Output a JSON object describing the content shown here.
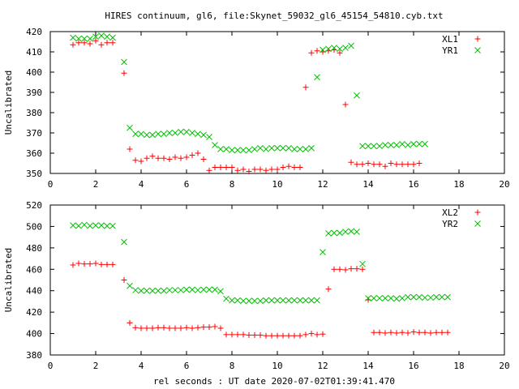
{
  "figure": {
    "title": "HIRES continuum, gl6, file:Skynet_59032_gl6_45154_54810.cyb.txt",
    "xlabel": "rel seconds : UT date 2020-07-02T01:39:41.470"
  },
  "colors": {
    "series_1": "#ff0000",
    "series_2": "#00c000",
    "axes": "#000000"
  },
  "chart_data": [
    {
      "type": "scatter",
      "ylabel": "Uncalibrated",
      "xlim": [
        0,
        20
      ],
      "ylim": [
        350,
        420
      ],
      "xticks": [
        0,
        2,
        4,
        6,
        8,
        10,
        12,
        14,
        16,
        18,
        20
      ],
      "yticks": [
        350,
        360,
        370,
        380,
        390,
        400,
        410,
        420
      ],
      "legend_position": "top-right",
      "x": [
        1.0,
        1.25,
        1.5,
        1.75,
        2.0,
        2.25,
        2.5,
        2.75,
        3.0,
        3.25,
        3.5,
        3.75,
        4.0,
        4.25,
        4.5,
        4.75,
        5.0,
        5.25,
        5.5,
        5.75,
        6.0,
        6.25,
        6.5,
        6.75,
        7.0,
        7.25,
        7.5,
        7.75,
        8.0,
        8.25,
        8.5,
        8.75,
        9.0,
        9.25,
        9.5,
        9.75,
        10.0,
        10.25,
        10.5,
        10.75,
        11.0,
        11.25,
        11.5,
        11.75,
        12.0,
        12.25,
        12.5,
        12.75,
        13.0,
        13.25,
        13.5,
        13.75,
        14.0,
        14.25,
        14.5,
        14.75,
        15.0,
        15.25,
        15.5,
        15.75,
        16.0,
        16.25,
        16.5,
        16.75,
        17.0,
        17.25,
        17.5,
        17.75,
        18.0,
        18.25,
        18.5,
        18.75,
        19.0
      ],
      "series": [
        {
          "name": "XL1",
          "marker": "plus",
          "color": "#ff0000",
          "values": [
            413.5,
            414.5,
            414.5,
            414.0,
            415.5,
            413.5,
            414.5,
            414.5,
            null,
            399.5,
            362.0,
            356.5,
            356.0,
            357.5,
            358.5,
            357.5,
            357.5,
            357.0,
            358.0,
            357.5,
            358.0,
            359.0,
            360.0,
            357.0,
            351.5,
            353.0,
            353.0,
            353.0,
            353.0,
            351.5,
            352.0,
            351.0,
            352.0,
            352.0,
            351.5,
            352.0,
            352.0,
            353.0,
            353.5,
            353.0,
            353.0,
            392.5,
            409.5,
            410.5,
            410.0,
            410.5,
            411.0,
            409.5,
            384.0,
            355.5,
            354.5,
            354.5,
            355.0,
            354.5,
            354.5,
            353.5,
            355.0,
            354.5,
            354.5,
            354.5,
            354.5,
            355.0,
            null,
            null,
            null,
            null,
            null,
            null,
            null,
            null,
            null,
            null,
            null
          ]
        },
        {
          "name": "YR1",
          "marker": "cross",
          "color": "#00c000",
          "values": [
            417.0,
            416.5,
            416.5,
            416.5,
            417.5,
            418.0,
            417.5,
            417.0,
            null,
            405.0,
            372.5,
            369.5,
            369.5,
            369.0,
            369.0,
            369.5,
            369.5,
            370.0,
            370.0,
            370.5,
            370.5,
            370.0,
            369.5,
            369.0,
            368.0,
            364.0,
            362.0,
            362.0,
            361.5,
            361.5,
            361.5,
            361.5,
            362.0,
            362.5,
            362.0,
            362.5,
            362.5,
            362.5,
            362.5,
            362.0,
            362.0,
            362.0,
            362.5,
            397.5,
            411.0,
            411.5,
            412.0,
            411.5,
            412.0,
            413.0,
            388.5,
            363.5,
            363.5,
            363.5,
            363.5,
            364.0,
            364.0,
            364.0,
            364.5,
            364.0,
            364.5,
            364.5,
            364.5,
            null,
            null,
            null,
            null,
            null,
            null,
            null,
            null,
            null,
            null
          ]
        }
      ]
    },
    {
      "type": "scatter",
      "ylabel": "Uncalibrated",
      "xlim": [
        0,
        20
      ],
      "ylim": [
        380,
        520
      ],
      "xticks": [
        0,
        2,
        4,
        6,
        8,
        10,
        12,
        14,
        16,
        18,
        20
      ],
      "yticks": [
        380,
        400,
        420,
        440,
        460,
        480,
        500,
        520
      ],
      "legend_position": "top-right",
      "x": [
        1.0,
        1.25,
        1.5,
        1.75,
        2.0,
        2.25,
        2.5,
        2.75,
        3.0,
        3.25,
        3.5,
        3.75,
        4.0,
        4.25,
        4.5,
        4.75,
        5.0,
        5.25,
        5.5,
        5.75,
        6.0,
        6.25,
        6.5,
        6.75,
        7.0,
        7.25,
        7.5,
        7.75,
        8.0,
        8.25,
        8.5,
        8.75,
        9.0,
        9.25,
        9.5,
        9.75,
        10.0,
        10.25,
        10.5,
        10.75,
        11.0,
        11.25,
        11.5,
        11.75,
        12.0,
        12.25,
        12.5,
        12.75,
        13.0,
        13.25,
        13.5,
        13.75,
        14.0,
        14.25,
        14.5,
        14.75,
        15.0,
        15.25,
        15.5,
        15.75,
        16.0,
        16.25,
        16.5,
        16.75,
        17.0,
        17.25,
        17.5,
        17.75,
        18.0,
        18.25,
        18.5,
        18.75,
        19.0
      ],
      "series": [
        {
          "name": "XL2",
          "marker": "plus",
          "color": "#ff0000",
          "values": [
            464.0,
            465.5,
            465.0,
            465.0,
            465.5,
            464.5,
            464.5,
            464.5,
            null,
            450.0,
            410.0,
            405.5,
            405.0,
            405.0,
            405.0,
            405.5,
            405.5,
            405.0,
            405.0,
            405.0,
            405.5,
            405.0,
            405.5,
            406.0,
            406.0,
            406.5,
            405.0,
            399.0,
            399.0,
            399.0,
            399.0,
            398.5,
            398.5,
            398.5,
            398.0,
            398.0,
            398.0,
            398.0,
            398.0,
            398.0,
            398.0,
            399.0,
            400.0,
            399.0,
            399.5,
            441.5,
            460.0,
            460.0,
            459.5,
            460.5,
            460.5,
            460.0,
            431.5,
            401.0,
            401.0,
            400.5,
            401.0,
            400.5,
            401.0,
            400.5,
            401.5,
            401.0,
            401.0,
            400.5,
            401.0,
            401.0,
            401.0,
            null,
            null,
            null,
            null,
            null,
            null
          ]
        },
        {
          "name": "YR2",
          "marker": "cross",
          "color": "#00c000",
          "values": [
            501.0,
            500.5,
            501.5,
            500.5,
            501.0,
            501.0,
            500.5,
            500.5,
            null,
            485.5,
            444.5,
            440.5,
            440.0,
            440.0,
            440.0,
            440.0,
            440.0,
            440.5,
            440.5,
            440.5,
            441.0,
            441.0,
            440.5,
            441.0,
            441.0,
            441.0,
            439.5,
            432.5,
            431.0,
            431.0,
            430.5,
            430.5,
            430.5,
            430.5,
            431.0,
            431.0,
            431.0,
            431.0,
            431.0,
            431.0,
            431.0,
            431.0,
            431.0,
            431.0,
            476.0,
            493.5,
            494.0,
            494.0,
            495.0,
            495.5,
            495.0,
            465.0,
            433.0,
            433.0,
            433.0,
            433.0,
            433.0,
            432.5,
            433.0,
            434.0,
            434.0,
            434.0,
            433.5,
            433.5,
            434.0,
            434.0,
            434.0,
            null,
            null,
            null,
            null,
            null,
            null
          ]
        }
      ]
    }
  ]
}
